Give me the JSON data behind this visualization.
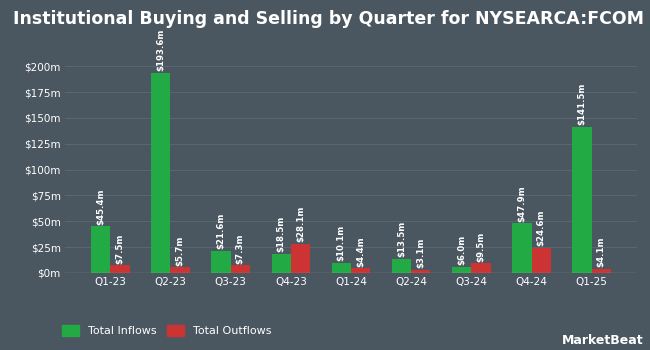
{
  "title": "Institutional Buying and Selling by Quarter for NYSEARCA:FCOM",
  "quarters": [
    "Q1-23",
    "Q2-23",
    "Q3-23",
    "Q4-23",
    "Q1-24",
    "Q2-24",
    "Q3-24",
    "Q4-24",
    "Q1-25"
  ],
  "inflows": [
    45.4,
    193.6,
    21.6,
    18.5,
    10.1,
    13.5,
    6.0,
    47.9,
    141.5
  ],
  "outflows": [
    7.5,
    5.7,
    7.3,
    28.1,
    4.4,
    3.1,
    9.5,
    24.6,
    4.1
  ],
  "inflow_labels": [
    "$45.4m",
    "$193.6m",
    "$21.6m",
    "$18.5m",
    "$10.1m",
    "$13.5m",
    "$6.0m",
    "$47.9m",
    "$141.5m"
  ],
  "outflow_labels": [
    "$7.5m",
    "$5.7m",
    "$7.3m",
    "$28.1m",
    "$4.4m",
    "$3.1m",
    "$9.5m",
    "$24.6m",
    "$4.1m"
  ],
  "inflow_color": "#22aa44",
  "outflow_color": "#cc3333",
  "bg_color": "#4a5660",
  "text_color": "#ffffff",
  "grid_color": "#5a6a72",
  "yticks": [
    0,
    25,
    50,
    75,
    100,
    125,
    150,
    175,
    200
  ],
  "ytick_labels": [
    "$0m",
    "$25m",
    "$50m",
    "$75m",
    "$100m",
    "$125m",
    "$150m",
    "$175m",
    "$200m"
  ],
  "ylim": [
    0,
    220
  ],
  "bar_width": 0.32,
  "title_fontsize": 12.5,
  "tick_fontsize": 7.5,
  "label_fontsize": 6.2,
  "legend_fontsize": 8,
  "watermark": "MarketBeat"
}
